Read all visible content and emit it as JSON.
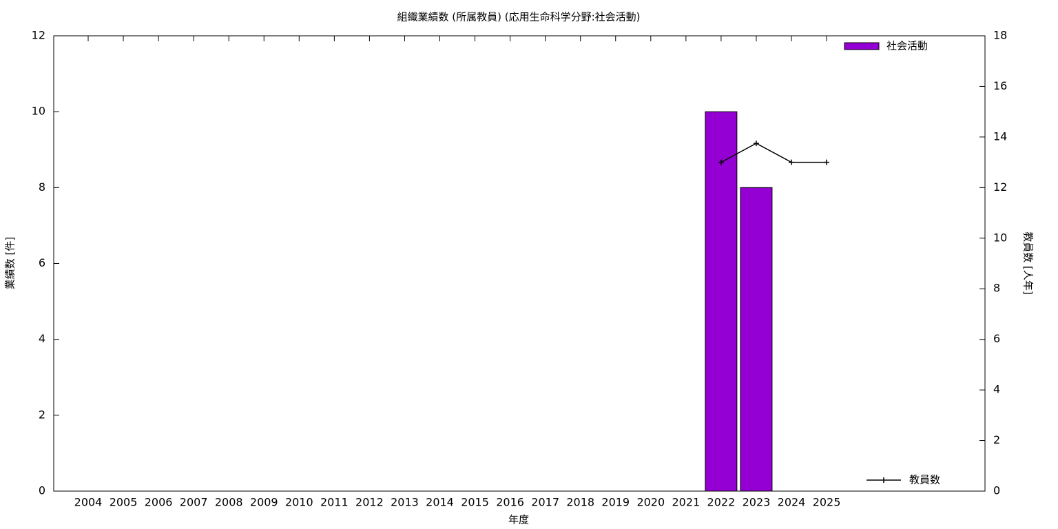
{
  "chart_data": {
    "type": "bar",
    "title": "組織業績数 (所属教員) (応用生命科学分野:社会活動)",
    "xlabel": "年度",
    "ylabel": "業績数 [件]",
    "y2label": "教員数 [人年]",
    "categories": [
      "2004",
      "2005",
      "2006",
      "2007",
      "2008",
      "2009",
      "2010",
      "2011",
      "2012",
      "2013",
      "2014",
      "2015",
      "2016",
      "2017",
      "2018",
      "2019",
      "2020",
      "2021",
      "2022",
      "2023",
      "2024",
      "2025"
    ],
    "series": [
      {
        "name": "社会活動",
        "type": "bar",
        "color": "#9400d3",
        "values": [
          null,
          null,
          null,
          null,
          null,
          null,
          null,
          null,
          null,
          null,
          null,
          null,
          null,
          null,
          null,
          null,
          null,
          null,
          10,
          8,
          null,
          null
        ]
      },
      {
        "name": "教員数",
        "type": "line",
        "color": "#000000",
        "axis": "y2",
        "values": [
          null,
          null,
          null,
          null,
          null,
          null,
          null,
          null,
          null,
          null,
          null,
          null,
          null,
          null,
          null,
          null,
          null,
          null,
          13,
          13.75,
          13,
          13
        ]
      }
    ],
    "ylim": [
      0,
      12
    ],
    "yticks": [
      0,
      2,
      4,
      6,
      8,
      10,
      12
    ],
    "y2lim": [
      0,
      18
    ],
    "y2ticks": [
      0,
      2,
      4,
      6,
      8,
      10,
      12,
      14,
      16,
      18
    ],
    "grid": false
  }
}
